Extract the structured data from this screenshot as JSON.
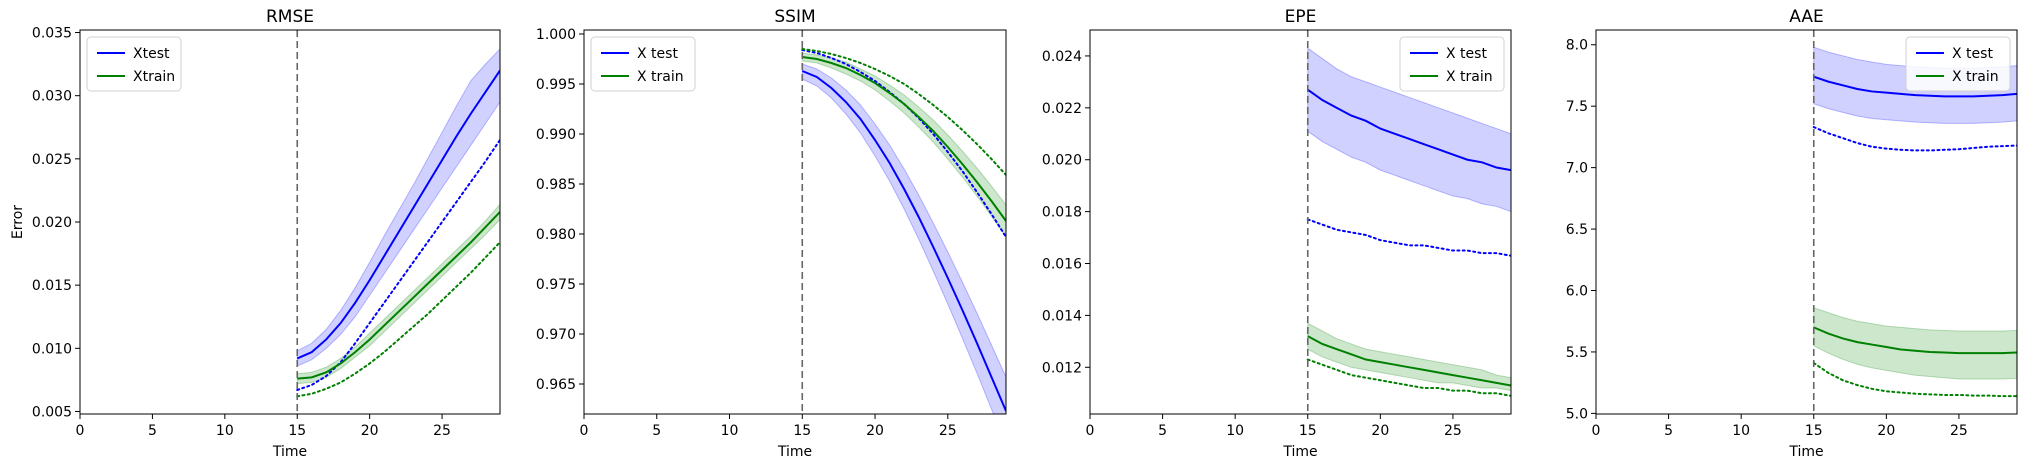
{
  "chart_data": [
    {
      "type": "line",
      "title": "RMSE",
      "xlabel": "Time",
      "ylabel": "Error",
      "xlim": [
        0,
        29
      ],
      "ylim": [
        0.0048,
        0.0352
      ],
      "xticks": [
        0,
        5,
        10,
        15,
        20,
        25
      ],
      "yticks": [
        0.005,
        0.01,
        0.015,
        0.02,
        0.025,
        0.03,
        0.035
      ],
      "tick_decimals": 3,
      "vline_x": 15,
      "legend_position": "top-left",
      "legend": [
        "Xtest",
        "Xtrain"
      ],
      "colors": {
        "test": "#0000ff",
        "train": "#008000",
        "test_band": "#ccccff",
        "train_band": "#c8e4c8"
      },
      "series": [
        {
          "name": "Xtest",
          "style": "solid",
          "color": "#0000ff",
          "x": [
            15,
            16,
            17,
            18,
            19,
            20,
            21,
            22,
            23,
            24,
            25,
            26,
            27,
            28,
            29
          ],
          "y": [
            0.0092,
            0.0097,
            0.0107,
            0.012,
            0.0136,
            0.0154,
            0.0173,
            0.0192,
            0.0211,
            0.023,
            0.0249,
            0.0268,
            0.0286,
            0.0303,
            0.032
          ],
          "lower": [
            0.0086,
            0.0091,
            0.01,
            0.0111,
            0.0125,
            0.0142,
            0.0159,
            0.0176,
            0.0193,
            0.021,
            0.0227,
            0.0244,
            0.0261,
            0.0278,
            0.0295
          ],
          "upper": [
            0.0098,
            0.0104,
            0.0115,
            0.013,
            0.0148,
            0.0168,
            0.0189,
            0.0209,
            0.0229,
            0.025,
            0.0271,
            0.0292,
            0.0312,
            0.0325,
            0.0337
          ]
        },
        {
          "name": "",
          "style": "dotted",
          "color": "#0000ff",
          "x": [
            15,
            16,
            17,
            18,
            19,
            20,
            21,
            22,
            23,
            24,
            25,
            26,
            27,
            28,
            29
          ],
          "y": [
            0.0067,
            0.0071,
            0.0078,
            0.0089,
            0.0104,
            0.012,
            0.0136,
            0.0152,
            0.0168,
            0.0184,
            0.02,
            0.0216,
            0.0232,
            0.0248,
            0.0265
          ]
        },
        {
          "name": "Xtrain",
          "style": "solid",
          "color": "#008000",
          "x": [
            15,
            16,
            17,
            18,
            19,
            20,
            21,
            22,
            23,
            24,
            25,
            26,
            27,
            28,
            29
          ],
          "y": [
            0.0076,
            0.0077,
            0.0081,
            0.0088,
            0.0097,
            0.0107,
            0.0118,
            0.0129,
            0.014,
            0.0151,
            0.0162,
            0.0173,
            0.0184,
            0.0196,
            0.0208
          ],
          "lower": [
            0.0072,
            0.0073,
            0.0077,
            0.0084,
            0.0093,
            0.0102,
            0.0113,
            0.0124,
            0.0135,
            0.0146,
            0.0157,
            0.0168,
            0.0179,
            0.019,
            0.0202
          ],
          "upper": [
            0.008,
            0.0081,
            0.0085,
            0.0092,
            0.0101,
            0.0112,
            0.0123,
            0.0134,
            0.0145,
            0.0156,
            0.0167,
            0.0178,
            0.0189,
            0.0201,
            0.0214
          ]
        },
        {
          "name": "",
          "style": "dotted",
          "color": "#008000",
          "x": [
            15,
            16,
            17,
            18,
            19,
            20,
            21,
            22,
            23,
            24,
            25,
            26,
            27,
            28,
            29
          ],
          "y": [
            0.0062,
            0.0064,
            0.0068,
            0.0073,
            0.008,
            0.0088,
            0.0097,
            0.0107,
            0.0117,
            0.0127,
            0.0138,
            0.0149,
            0.016,
            0.0172,
            0.0184
          ]
        }
      ]
    },
    {
      "type": "line",
      "title": "SSIM",
      "xlabel": "Time",
      "ylabel": "",
      "xlim": [
        0,
        29
      ],
      "ylim": [
        0.962,
        1.0004
      ],
      "xticks": [
        0,
        5,
        10,
        15,
        20,
        25
      ],
      "yticks": [
        0.965,
        0.97,
        0.975,
        0.98,
        0.985,
        0.99,
        0.995,
        1.0
      ],
      "tick_decimals": 3,
      "vline_x": 15,
      "legend_position": "top-left",
      "legend": [
        "X test",
        "X train"
      ],
      "colors": {
        "test": "#0000ff",
        "train": "#008000",
        "test_band": "#ccccff",
        "train_band": "#c8e4c8"
      },
      "series": [
        {
          "name": "X test",
          "style": "solid",
          "color": "#0000ff",
          "x": [
            15,
            16,
            17,
            18,
            19,
            20,
            21,
            22,
            23,
            24,
            25,
            26,
            27,
            28,
            29
          ],
          "y": [
            0.9963,
            0.9957,
            0.9946,
            0.9932,
            0.9915,
            0.9894,
            0.9871,
            0.9845,
            0.9817,
            0.9787,
            0.9756,
            0.9724,
            0.9691,
            0.9657,
            0.9623
          ],
          "lower": [
            0.9955,
            0.9948,
            0.9936,
            0.992,
            0.9901,
            0.9878,
            0.9853,
            0.9825,
            0.9795,
            0.9763,
            0.973,
            0.9696,
            0.9661,
            0.9625,
            0.9589
          ],
          "upper": [
            0.997,
            0.9965,
            0.9956,
            0.9944,
            0.9929,
            0.991,
            0.9889,
            0.9865,
            0.9839,
            0.9811,
            0.9782,
            0.9752,
            0.9721,
            0.9689,
            0.9657
          ]
        },
        {
          "name": "",
          "style": "dotted",
          "color": "#0000ff",
          "x": [
            15,
            16,
            17,
            18,
            19,
            20,
            21,
            22,
            23,
            24,
            25,
            26,
            27,
            28,
            29
          ],
          "y": [
            0.9984,
            0.9981,
            0.9976,
            0.997,
            0.9962,
            0.9953,
            0.9942,
            0.993,
            0.9916,
            0.99,
            0.9882,
            0.9863,
            0.9842,
            0.982,
            0.9797
          ]
        },
        {
          "name": "X train",
          "style": "solid",
          "color": "#008000",
          "x": [
            15,
            16,
            17,
            18,
            19,
            20,
            21,
            22,
            23,
            24,
            25,
            26,
            27,
            28,
            29
          ],
          "y": [
            0.9977,
            0.9975,
            0.9971,
            0.9966,
            0.9959,
            0.9951,
            0.9941,
            0.993,
            0.9917,
            0.9903,
            0.9887,
            0.987,
            0.9852,
            0.9833,
            0.9813
          ],
          "lower": [
            0.9973,
            0.9971,
            0.9966,
            0.996,
            0.9953,
            0.9944,
            0.9933,
            0.9921,
            0.9907,
            0.9892,
            0.9875,
            0.9857,
            0.9838,
            0.9818,
            0.9797
          ],
          "upper": [
            0.9981,
            0.9979,
            0.9976,
            0.9972,
            0.9965,
            0.9958,
            0.9949,
            0.9939,
            0.9927,
            0.9914,
            0.9899,
            0.9883,
            0.9866,
            0.9848,
            0.9829
          ]
        },
        {
          "name": "",
          "style": "dotted",
          "color": "#008000",
          "x": [
            15,
            16,
            17,
            18,
            19,
            20,
            21,
            22,
            23,
            24,
            25,
            26,
            27,
            28,
            29
          ],
          "y": [
            0.9985,
            0.9983,
            0.998,
            0.9976,
            0.9971,
            0.9965,
            0.9958,
            0.995,
            0.994,
            0.9929,
            0.9917,
            0.9904,
            0.989,
            0.9875,
            0.9859
          ]
        }
      ]
    },
    {
      "type": "line",
      "title": "EPE",
      "xlabel": "Time",
      "ylabel": "",
      "xlim": [
        0,
        29
      ],
      "ylim": [
        0.0102,
        0.025
      ],
      "xticks": [
        0,
        5,
        10,
        15,
        20,
        25
      ],
      "yticks": [
        0.012,
        0.014,
        0.016,
        0.018,
        0.02,
        0.022,
        0.024
      ],
      "tick_decimals": 3,
      "vline_x": 15,
      "legend_position": "top-right",
      "legend": [
        "X test",
        "X train"
      ],
      "colors": {
        "test": "#0000ff",
        "train": "#008000",
        "test_band": "#ccccff",
        "train_band": "#c8e4c8"
      },
      "series": [
        {
          "name": "X test",
          "style": "solid",
          "color": "#0000ff",
          "x": [
            15,
            16,
            17,
            18,
            19,
            20,
            21,
            22,
            23,
            24,
            25,
            26,
            27,
            28,
            29
          ],
          "y": [
            0.0227,
            0.0223,
            0.022,
            0.0217,
            0.0215,
            0.0212,
            0.021,
            0.0208,
            0.0206,
            0.0204,
            0.0202,
            0.02,
            0.0199,
            0.0197,
            0.0196
          ],
          "lower": [
            0.0211,
            0.0207,
            0.0204,
            0.0201,
            0.0199,
            0.0196,
            0.0194,
            0.0192,
            0.019,
            0.0188,
            0.0186,
            0.0185,
            0.0183,
            0.0182,
            0.018
          ],
          "upper": [
            0.0243,
            0.0239,
            0.0235,
            0.0232,
            0.023,
            0.0228,
            0.0226,
            0.0224,
            0.0222,
            0.022,
            0.0218,
            0.0216,
            0.0214,
            0.0212,
            0.021
          ]
        },
        {
          "name": "",
          "style": "dotted",
          "color": "#0000ff",
          "x": [
            15,
            16,
            17,
            18,
            19,
            20,
            21,
            22,
            23,
            24,
            25,
            26,
            27,
            28,
            29
          ],
          "y": [
            0.0177,
            0.0175,
            0.0173,
            0.0172,
            0.0171,
            0.0169,
            0.0168,
            0.0167,
            0.0167,
            0.0166,
            0.0165,
            0.0165,
            0.0164,
            0.0164,
            0.0163
          ]
        },
        {
          "name": "X train",
          "style": "solid",
          "color": "#008000",
          "x": [
            15,
            16,
            17,
            18,
            19,
            20,
            21,
            22,
            23,
            24,
            25,
            26,
            27,
            28,
            29
          ],
          "y": [
            0.0132,
            0.0129,
            0.0127,
            0.0125,
            0.0123,
            0.0122,
            0.0121,
            0.012,
            0.0119,
            0.0118,
            0.0117,
            0.0116,
            0.0115,
            0.0114,
            0.0113
          ],
          "lower": [
            0.0127,
            0.0124,
            0.0122,
            0.012,
            0.0119,
            0.0118,
            0.0117,
            0.0116,
            0.0115,
            0.0114,
            0.0114,
            0.0113,
            0.0112,
            0.0112,
            0.0111
          ],
          "upper": [
            0.0137,
            0.0134,
            0.0131,
            0.0129,
            0.0127,
            0.0126,
            0.0125,
            0.0124,
            0.0123,
            0.0122,
            0.0121,
            0.012,
            0.0119,
            0.0117,
            0.0116
          ]
        },
        {
          "name": "",
          "style": "dotted",
          "color": "#008000",
          "x": [
            15,
            16,
            17,
            18,
            19,
            20,
            21,
            22,
            23,
            24,
            25,
            26,
            27,
            28,
            29
          ],
          "y": [
            0.0123,
            0.0121,
            0.0119,
            0.0117,
            0.0116,
            0.0115,
            0.0114,
            0.0113,
            0.0112,
            0.0112,
            0.0111,
            0.0111,
            0.011,
            0.011,
            0.0109
          ]
        }
      ]
    },
    {
      "type": "line",
      "title": "AAE",
      "xlabel": "Time",
      "ylabel": "",
      "xlim": [
        0,
        29
      ],
      "ylim": [
        4.995,
        8.12
      ],
      "xticks": [
        0,
        5,
        10,
        15,
        20,
        25
      ],
      "yticks": [
        5.0,
        5.5,
        6.0,
        6.5,
        7.0,
        7.5,
        8.0
      ],
      "tick_decimals": 1,
      "vline_x": 15,
      "legend_position": "top-right",
      "legend": [
        "X test",
        "X train"
      ],
      "colors": {
        "test": "#0000ff",
        "train": "#008000",
        "test_band": "#ccccff",
        "train_band": "#c8e4c8"
      },
      "series": [
        {
          "name": "X test",
          "style": "solid",
          "color": "#0000ff",
          "x": [
            15,
            16,
            17,
            18,
            19,
            20,
            21,
            22,
            23,
            24,
            25,
            26,
            27,
            28,
            29
          ],
          "y": [
            7.74,
            7.7,
            7.67,
            7.64,
            7.62,
            7.61,
            7.6,
            7.59,
            7.585,
            7.58,
            7.58,
            7.58,
            7.585,
            7.59,
            7.6
          ],
          "lower": [
            7.52,
            7.48,
            7.45,
            7.42,
            7.4,
            7.39,
            7.38,
            7.37,
            7.365,
            7.36,
            7.36,
            7.36,
            7.365,
            7.37,
            7.38
          ],
          "upper": [
            7.98,
            7.94,
            7.91,
            7.88,
            7.86,
            7.84,
            7.83,
            7.82,
            7.815,
            7.81,
            7.81,
            7.81,
            7.815,
            7.82,
            7.83
          ]
        },
        {
          "name": "",
          "style": "dotted",
          "color": "#0000ff",
          "x": [
            15,
            16,
            17,
            18,
            19,
            20,
            21,
            22,
            23,
            24,
            25,
            26,
            27,
            28,
            29
          ],
          "y": [
            7.33,
            7.28,
            7.24,
            7.2,
            7.17,
            7.155,
            7.145,
            7.14,
            7.14,
            7.145,
            7.15,
            7.16,
            7.17,
            7.175,
            7.18
          ]
        },
        {
          "name": "X train",
          "style": "solid",
          "color": "#008000",
          "x": [
            15,
            16,
            17,
            18,
            19,
            20,
            21,
            22,
            23,
            24,
            25,
            26,
            27,
            28,
            29
          ],
          "y": [
            5.7,
            5.65,
            5.61,
            5.58,
            5.56,
            5.54,
            5.52,
            5.51,
            5.5,
            5.495,
            5.49,
            5.49,
            5.49,
            5.49,
            5.495
          ],
          "lower": [
            5.55,
            5.49,
            5.44,
            5.4,
            5.37,
            5.35,
            5.33,
            5.31,
            5.3,
            5.29,
            5.28,
            5.28,
            5.28,
            5.28,
            5.285
          ],
          "upper": [
            5.86,
            5.82,
            5.78,
            5.75,
            5.73,
            5.71,
            5.7,
            5.69,
            5.68,
            5.675,
            5.67,
            5.67,
            5.67,
            5.67,
            5.675
          ]
        },
        {
          "name": "",
          "style": "dotted",
          "color": "#008000",
          "x": [
            15,
            16,
            17,
            18,
            19,
            20,
            21,
            22,
            23,
            24,
            25,
            26,
            27,
            28,
            29
          ],
          "y": [
            5.41,
            5.33,
            5.27,
            5.23,
            5.2,
            5.18,
            5.17,
            5.16,
            5.155,
            5.15,
            5.15,
            5.145,
            5.145,
            5.14,
            5.14
          ]
        }
      ]
    }
  ]
}
